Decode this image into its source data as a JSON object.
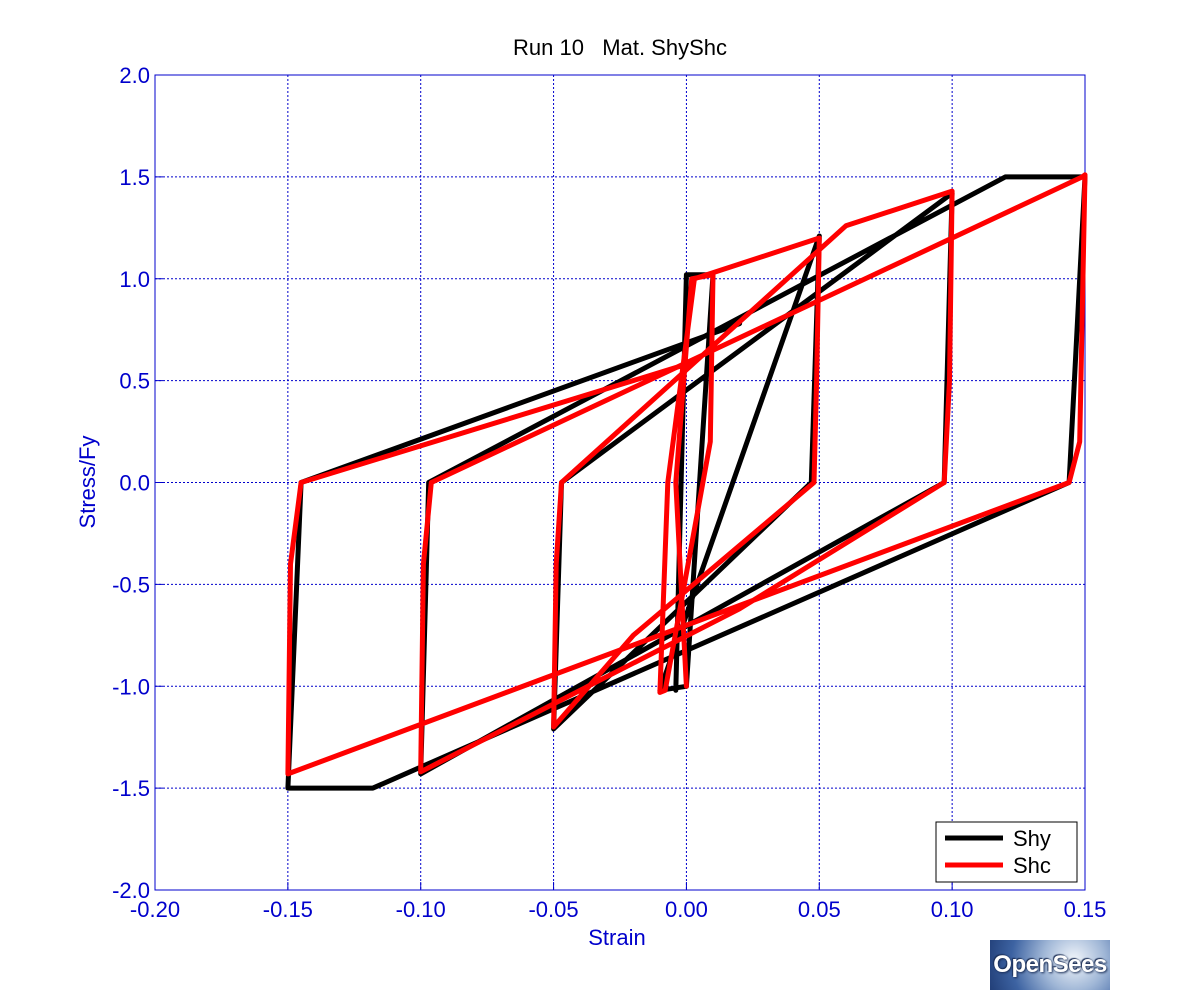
{
  "chart_data": {
    "type": "line",
    "title": "Run 10   Mat. ShyShc",
    "xlabel": "Strain",
    "ylabel": "Stress/Fy",
    "xlim": [
      -0.2,
      0.15
    ],
    "ylim": [
      -2.0,
      2.0
    ],
    "xticks": [
      -0.2,
      -0.15,
      -0.1,
      -0.05,
      0.0,
      0.05,
      0.1,
      0.15
    ],
    "xtick_labels": [
      "-0.20",
      "-0.15",
      "-0.10",
      "-0.05",
      "0.00",
      "0.05",
      "0.10",
      "0.15"
    ],
    "yticks": [
      2.0,
      1.5,
      1.0,
      0.5,
      0.0,
      -0.5,
      -1.0,
      -1.5,
      -2.0
    ],
    "ytick_labels": [
      "2.0",
      "1.5",
      "1.0",
      "0.5",
      "0.0",
      "-0.5",
      "-1.0",
      "-1.5",
      "-2.0"
    ],
    "grid": true,
    "legend_position": "bottom-right",
    "series": [
      {
        "name": "Shy",
        "color": "#000000",
        "segments": [
          [
            [
              -0.004,
              -1.02
            ],
            [
              0.0,
              1.02
            ],
            [
              0.01,
              1.02
            ],
            [
              0.0,
              -1.0
            ],
            [
              -0.01,
              -1.02
            ],
            [
              0.05,
              1.21
            ],
            [
              0.047,
              0.0
            ],
            [
              -0.05,
              -1.21
            ],
            [
              -0.047,
              0.0
            ],
            [
              0.1,
              1.42
            ],
            [
              0.097,
              0.0
            ],
            [
              -0.1,
              -1.43
            ],
            [
              -0.097,
              0.0
            ],
            [
              0.12,
              1.5
            ],
            [
              0.15,
              1.5
            ],
            [
              0.144,
              0.0
            ],
            [
              -0.118,
              -1.5
            ],
            [
              -0.15,
              -1.5
            ],
            [
              -0.145,
              0.0
            ],
            [
              0.02,
              0.78
            ]
          ]
        ]
      },
      {
        "name": "Shc",
        "color": "#ff0000",
        "segments": [
          [
            [
              0.0,
              -1.0
            ],
            [
              -0.004,
              0.0
            ],
            [
              0.002,
              1.0
            ],
            [
              0.01,
              1.02
            ],
            [
              0.009,
              0.2
            ],
            [
              -0.008,
              -1.02
            ],
            [
              -0.01,
              -1.03
            ],
            [
              -0.007,
              0.0
            ],
            [
              0.003,
              1.0
            ],
            [
              0.05,
              1.2
            ],
            [
              0.049,
              0.5
            ],
            [
              0.048,
              0.0
            ],
            [
              -0.02,
              -0.75
            ],
            [
              -0.05,
              -1.2
            ],
            [
              -0.049,
              -0.4
            ],
            [
              -0.047,
              0.0
            ],
            [
              0.06,
              1.26
            ],
            [
              0.1,
              1.43
            ],
            [
              0.099,
              0.5
            ],
            [
              0.097,
              0.0
            ],
            [
              0.02,
              -0.62
            ],
            [
              -0.1,
              -1.42
            ],
            [
              -0.099,
              -0.4
            ],
            [
              -0.096,
              0.0
            ],
            [
              0.149,
              1.5
            ],
            [
              0.15,
              1.51
            ],
            [
              0.148,
              0.2
            ],
            [
              0.144,
              0.0
            ],
            [
              -0.15,
              -1.43
            ],
            [
              -0.149,
              -0.4
            ],
            [
              -0.147,
              -0.2
            ],
            [
              -0.145,
              0.0
            ],
            [
              0.0,
              0.58
            ]
          ]
        ]
      }
    ]
  },
  "logo": {
    "text": "OpenSees"
  }
}
